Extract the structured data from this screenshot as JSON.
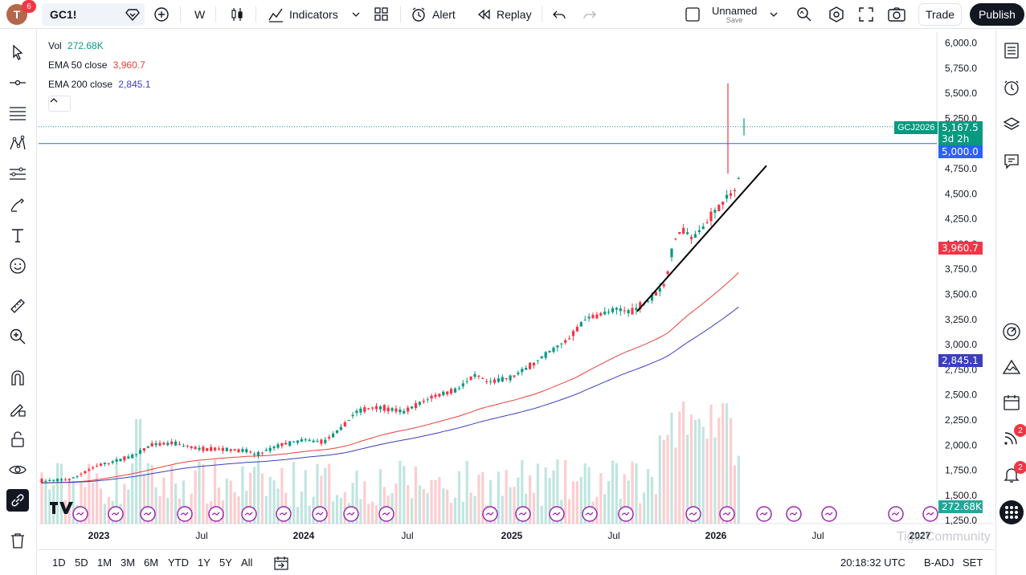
{
  "header": {
    "avatar_letter": "T",
    "avatar_badge": "6",
    "symbol": "GC1!",
    "interval": "W",
    "indicators_label": "Indicators",
    "alert_label": "Alert",
    "replay_label": "Replay",
    "layout_name": "Unnamed",
    "save_label": "Save",
    "trade_label": "Trade",
    "publish_label": "Publish"
  },
  "legend": {
    "vol_label": "Vol",
    "vol_value": "272.68K",
    "ema50_label": "EMA 50 close",
    "ema50_value": "3,960.7",
    "ema200_label": "EMA 200 close",
    "ema200_value": "2,845.1"
  },
  "price_axis": {
    "ticks": [
      "6,000.0",
      "5,750.0",
      "5,500.0",
      "5,250.0",
      "4,750.0",
      "4,500.0",
      "4,250.0",
      "4,000.0",
      "3,750.0",
      "3,500.0",
      "3,250.0",
      "3,000.0",
      "2,750.0",
      "2,500.0",
      "2,250.0",
      "2,000.0",
      "1,750.0",
      "1,500.0",
      "1,250.0"
    ],
    "last_price": "5,167.5",
    "countdown": "3d 2h",
    "symbol_tag": "GCJ2026",
    "hline_price": "5,000.0",
    "ema50_tag": "3,960.7",
    "ema200_tag": "2,845.1",
    "volume_tag": "272.68K"
  },
  "time_axis": {
    "labels": [
      "2023",
      "Jul",
      "2024",
      "Jul",
      "2025",
      "Jul",
      "2026",
      "Jul",
      "2027"
    ]
  },
  "bottom": {
    "ranges": [
      "1D",
      "5D",
      "1M",
      "3M",
      "6M",
      "YTD",
      "1Y",
      "5Y",
      "All"
    ],
    "clock": "20:18:32 UTC",
    "adjust": "B-ADJ",
    "session": "SET"
  },
  "badges": {
    "ideas": "2",
    "alerts": "2"
  },
  "watermark": "TigerCommunity",
  "colors": {
    "up": "#089981",
    "down": "#f23645",
    "ema50": "#e8403a",
    "ema200": "#3b3ebd",
    "hline": "#2962ff"
  },
  "chart_data": {
    "type": "candlestick",
    "interval": "W",
    "ylim": [
      1250,
      6000
    ],
    "series": [
      {
        "name": "EMA 50 close",
        "last": 3960.7
      },
      {
        "name": "EMA 200 close",
        "last": 2845.1
      }
    ],
    "last_price": 5167.5,
    "horizontal_line": 5000,
    "trendline": [
      [
        3350,
        3350
      ],
      [
        4800,
        4800
      ]
    ]
  }
}
